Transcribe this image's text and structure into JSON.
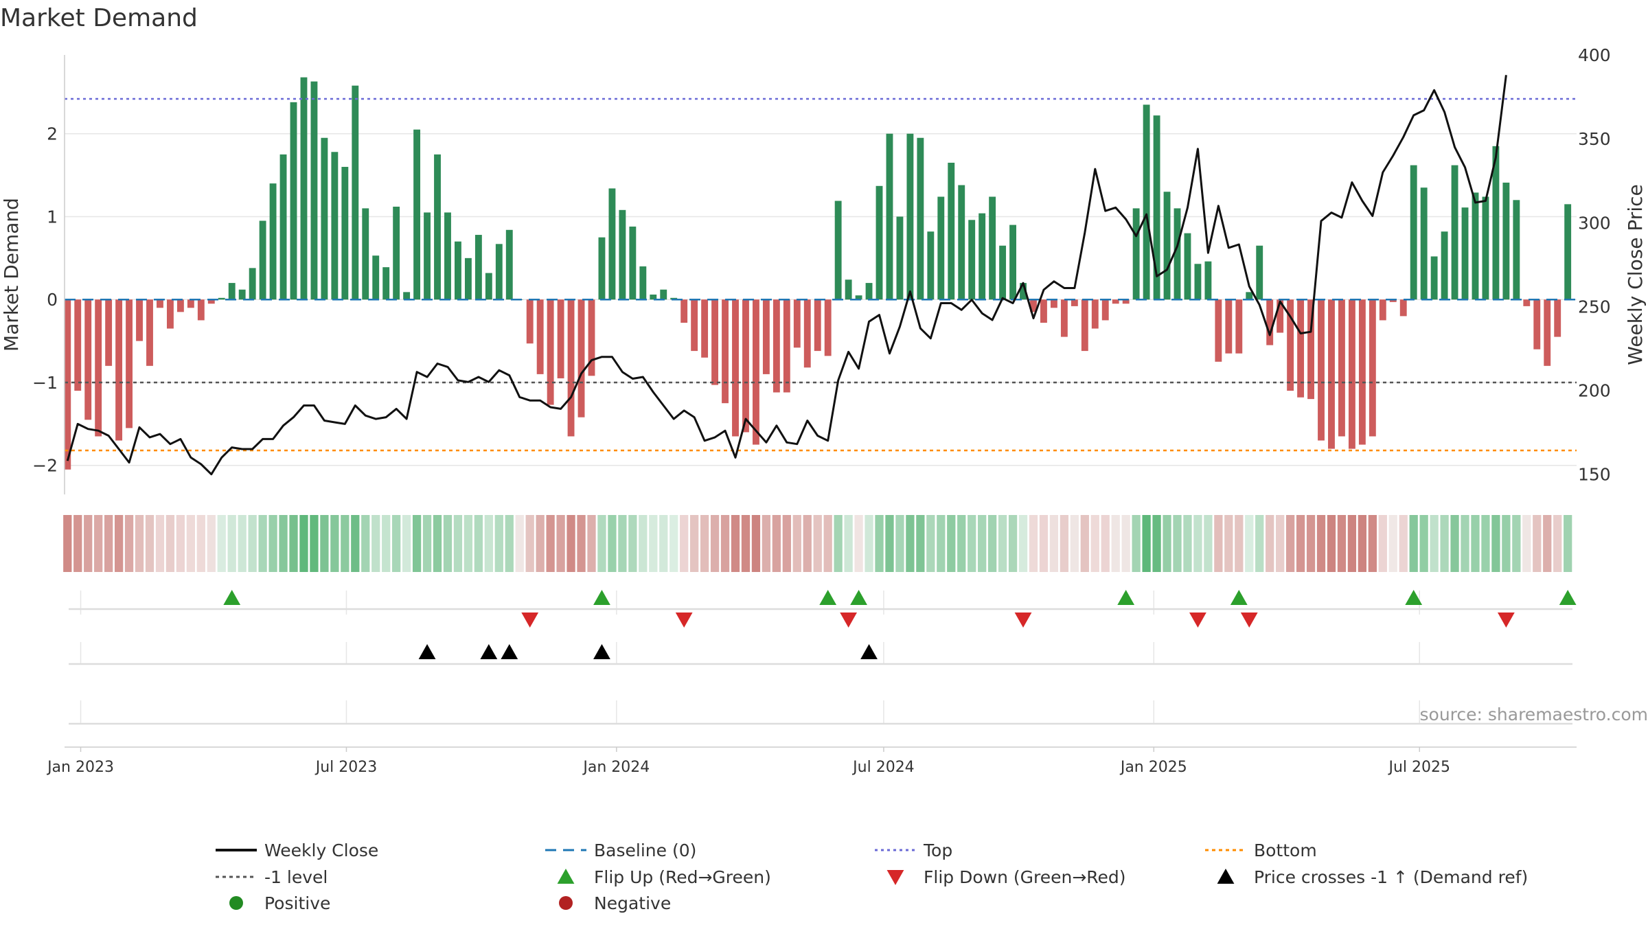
{
  "chart_data": {
    "type": "bar",
    "title": "Market Demand",
    "ylabel_left": "Market Demand",
    "ylabel_right": "Weekly Close Price",
    "source": "source: sharemaestro.com",
    "x_start": "2022-12-23",
    "x_step_days": 7,
    "xlim": [
      "2022-12-21",
      "2025-10-16"
    ],
    "ylim_left": [
      -2.35,
      2.95
    ],
    "ylim_right": [
      138,
      400
    ],
    "yticks_left": [
      2,
      1,
      0,
      -1,
      -2
    ],
    "ytick_labels_left": [
      "2",
      "1",
      "0",
      "−1",
      "−2"
    ],
    "yticks_right": [
      400,
      350,
      300,
      250,
      200,
      150
    ],
    "ytick_labels_right": [
      "400",
      "350",
      "300",
      "250",
      "200",
      "150"
    ],
    "xticks": [
      {
        "date": "2023-01-01",
        "label": "Jan 2023"
      },
      {
        "date": "2023-07-01",
        "label": "Jul 2023"
      },
      {
        "date": "2024-01-01",
        "label": "Jan 2024"
      },
      {
        "date": "2024-07-01",
        "label": "Jul 2024"
      },
      {
        "date": "2025-01-01",
        "label": "Jan 2025"
      },
      {
        "date": "2025-07-01",
        "label": "Jul 2025"
      }
    ],
    "reference_lines": {
      "top": 2.42,
      "bottom": -1.82,
      "minus_one": -1,
      "baseline": 0
    },
    "demand": [
      -2.05,
      -1.1,
      -1.45,
      -1.65,
      -0.8,
      -1.7,
      -1.55,
      -0.5,
      -0.8,
      -0.1,
      -0.35,
      -0.15,
      -0.1,
      -0.25,
      -0.05,
      0.02,
      0.2,
      0.12,
      0.38,
      0.95,
      1.4,
      1.75,
      2.38,
      2.68,
      2.63,
      1.95,
      1.78,
      1.6,
      2.58,
      1.1,
      0.53,
      0.39,
      1.12,
      0.09,
      2.05,
      1.05,
      1.75,
      1.05,
      0.7,
      0.5,
      0.78,
      0.32,
      0.67,
      0.84,
      0.0,
      -0.53,
      -0.9,
      -1.27,
      -0.95,
      -1.65,
      -1.42,
      -0.92,
      0.75,
      1.34,
      1.08,
      0.88,
      0.4,
      0.06,
      0.12,
      0.02,
      -0.28,
      -0.62,
      -0.7,
      -1.03,
      -1.25,
      -1.65,
      -1.6,
      -1.75,
      -0.9,
      -1.12,
      -1.12,
      -0.58,
      -0.82,
      -0.62,
      -0.68,
      1.19,
      0.24,
      0.05,
      0.2,
      1.37,
      2.0,
      1.0,
      2.0,
      1.95,
      0.82,
      1.24,
      1.65,
      1.38,
      0.96,
      1.04,
      1.24,
      0.65,
      0.9,
      0.2,
      -0.15,
      -0.28,
      -0.1,
      -0.45,
      -0.08,
      -0.62,
      -0.35,
      -0.25,
      -0.05,
      -0.05,
      1.1,
      2.35,
      2.22,
      1.3,
      1.1,
      0.8,
      0.43,
      0.46,
      -0.75,
      -0.65,
      -0.65,
      0.09,
      0.65,
      -0.55,
      -0.4,
      -1.1,
      -1.18,
      -1.2,
      -1.7,
      -1.8,
      -1.65,
      -1.8,
      -1.75,
      -1.65,
      -0.25,
      -0.03,
      -0.2,
      1.62,
      1.35,
      0.52,
      0.82,
      1.62,
      1.11,
      1.29,
      1.24,
      1.85,
      1.41,
      1.2,
      -0.08,
      -0.6,
      -0.8,
      -0.45,
      1.15
    ],
    "weekly_close": [
      158,
      180,
      177,
      176,
      173,
      165,
      157,
      178,
      172,
      174,
      168,
      171,
      160,
      156,
      150,
      160,
      166,
      165,
      165,
      171,
      171,
      179,
      184,
      191,
      191,
      182,
      181,
      180,
      191,
      185,
      183,
      184,
      189,
      183,
      211,
      208,
      216,
      214,
      206,
      205,
      208,
      205,
      212,
      209,
      196,
      194,
      194,
      190,
      189,
      196,
      210,
      218,
      220,
      220,
      211,
      207,
      208,
      199,
      191,
      183,
      188,
      184,
      170,
      172,
      176,
      160,
      183,
      176,
      169,
      179,
      169,
      168,
      182,
      173,
      170,
      206,
      223,
      213,
      241,
      245,
      222,
      238,
      259,
      237,
      231,
      252,
      252,
      248,
      254,
      246,
      242,
      255,
      252,
      264,
      243,
      260,
      265,
      261,
      261,
      294,
      332,
      307,
      309,
      302,
      292,
      305,
      268,
      272,
      286,
      309,
      344,
      282,
      310,
      285,
      287,
      262,
      251,
      233,
      253,
      244,
      234,
      235,
      301,
      306,
      303,
      324,
      313,
      304,
      330,
      340,
      351,
      364,
      367,
      379,
      366,
      345,
      333,
      312,
      313,
      339,
      388
    ],
    "heat_colors": [
      "#d08a86",
      "#d49591",
      "#d8a29f",
      "#dba9a6",
      "#d8a29f",
      "#d49591",
      "#dba9a6",
      "#e2bdba",
      "#e4c4c1",
      "#ecd4d3",
      "#e8cdcb",
      "#ecd4d3",
      "#eedad8",
      "#eedad8",
      "#eee0de",
      "#d9ece0",
      "#d0e8d8",
      "#cde7d6",
      "#c2e2cd",
      "#a8d7b8",
      "#98d0aa",
      "#86c79b",
      "#77c08d",
      "#5fb87b",
      "#62b97d",
      "#7dc393",
      "#85c79a",
      "#8cca9f",
      "#6ebd87",
      "#a3d4b3",
      "#c0e1cb",
      "#c5e4cf",
      "#a8d7b8",
      "#d2e9da",
      "#80c596",
      "#a3d4b3",
      "#8cca9f",
      "#a3d4b3",
      "#b4dcc1",
      "#bce0c7",
      "#b0dabe",
      "#c8e5d1",
      "#b4dcc1",
      "#acd8ba",
      "#efe6e4",
      "#e4c4c1",
      "#dcafac",
      "#d49591",
      "#d8a29f",
      "#d08a86",
      "#d49591",
      "#dcafac",
      "#b0dabe",
      "#99d1ab",
      "#a6d6b6",
      "#aed9bc",
      "#cbe6d4",
      "#d6ebdd",
      "#d2e9da",
      "#dbeee2",
      "#ecd4d3",
      "#e4c4c1",
      "#e2bdba",
      "#dcafac",
      "#d8a29f",
      "#d08a86",
      "#d08a86",
      "#cd8480",
      "#dcafac",
      "#d8a29f",
      "#d8a29f",
      "#e2bdba",
      "#dcafac",
      "#e4c4c1",
      "#e2bdba",
      "#a3d4b3",
      "#cde7d6",
      "#f0e4e2",
      "#d0e8d8",
      "#96cfa8",
      "#7dc393",
      "#a5d5b5",
      "#7dc393",
      "#7fc495",
      "#abd7b9",
      "#a0d3b1",
      "#8ecba1",
      "#98d0aa",
      "#a8d7b8",
      "#a6d6b6",
      "#a0d3b1",
      "#b9dec5",
      "#abd7b9",
      "#d6ebdd",
      "#eedad8",
      "#ecd4d3",
      "#eee0de",
      "#e8cdcb",
      "#efe6e4",
      "#e4c4c1",
      "#eedad8",
      "#ecd4d3",
      "#efe6e4",
      "#efe6e4",
      "#a3d4b3",
      "#5eb87a",
      "#67bb81",
      "#95cea7",
      "#a3d4b3",
      "#b0dabe",
      "#c2e2cd",
      "#c2e2cd",
      "#e2bdba",
      "#e4c4c1",
      "#e4c4c1",
      "#d8ede0",
      "#b9dec5",
      "#e4c4c1",
      "#e8cdcb",
      "#d8a29f",
      "#d49591",
      "#d49591",
      "#d08a86",
      "#cd8480",
      "#d08a86",
      "#cd8480",
      "#cd8480",
      "#d08a86",
      "#ecd4d3",
      "#f0e8e6",
      "#ecd4d3",
      "#86c79b",
      "#91cda4",
      "#c0e1cb",
      "#acd8ba",
      "#86c79b",
      "#a3d4b3",
      "#98d0aa",
      "#99d1ab",
      "#83c698",
      "#96cfa8",
      "#a3d4b3",
      "#efe6e4",
      "#e4c4c1",
      "#dcafac",
      "#e8cdcb",
      "#9fd2b0"
    ],
    "flip_up_weeks": [
      16,
      52,
      74,
      77,
      103,
      114,
      131,
      146
    ],
    "flip_down_weeks": [
      45,
      60,
      76,
      93,
      110,
      115,
      140
    ],
    "price_cross_weeks": [
      35,
      41,
      43,
      52,
      78
    ],
    "legend": [
      "Weekly Close",
      "Baseline (0)",
      "Top",
      "Bottom",
      "-1 level",
      "Flip Up (Red→Green)",
      "Flip Down (Green→Red)",
      "Price crosses -1 ↑ (Demand ref)",
      "Positive",
      "Negative"
    ],
    "colors": {
      "positive": "#2e8b57",
      "negative": "#cd5c5c",
      "close": "#111111",
      "baseline": "#1f77b4",
      "top": "#6a6ad6",
      "bottom": "#ff8c00",
      "minus_one": "#555555",
      "flip_up": "#2ca02c",
      "flip_down": "#d62728",
      "cross": "#000000",
      "legend_positive": "#228b22",
      "legend_negative": "#b22222",
      "grid": "#e6e6e6",
      "axis": "#cccccc",
      "text": "#333333"
    }
  }
}
